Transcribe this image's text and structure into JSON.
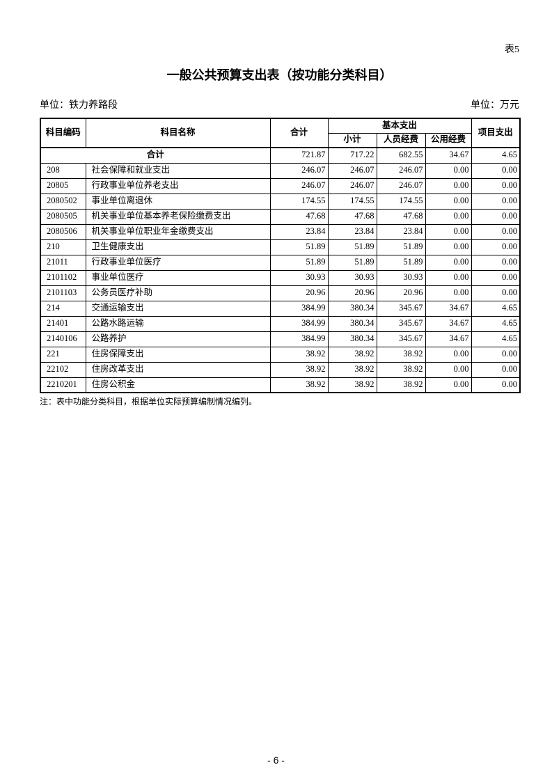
{
  "page": {
    "corner_label": "表5",
    "title": "一般公共预算支出表（按功能分类科目）",
    "unit_left": "单位：铁力养路段",
    "unit_right": "单位：万元",
    "note": "注：表中功能分类科目，根据单位实际预算编制情况编列。",
    "page_number": "- 6 -",
    "ink_color": "#000000",
    "paper_color": "#ffffff"
  },
  "table": {
    "headers": {
      "code": "科目编码",
      "name": "科目名称",
      "total": "合计",
      "basic_group": "基本支出",
      "subtotal": "小计",
      "personnel": "人员经费",
      "public": "公用经费",
      "project": "项目支出"
    },
    "total_row": {
      "label": "合计",
      "values": [
        "721.87",
        "717.22",
        "682.55",
        "34.67",
        "4.65"
      ]
    },
    "rows": [
      {
        "code": "208",
        "name": "社会保障和就业支出",
        "values": [
          "246.07",
          "246.07",
          "246.07",
          "0.00",
          "0.00"
        ]
      },
      {
        "code": "20805",
        "name": "行政事业单位养老支出",
        "values": [
          "246.07",
          "246.07",
          "246.07",
          "0.00",
          "0.00"
        ]
      },
      {
        "code": "2080502",
        "name": "事业单位离退休",
        "values": [
          "174.55",
          "174.55",
          "174.55",
          "0.00",
          "0.00"
        ]
      },
      {
        "code": "2080505",
        "name": "机关事业单位基本养老保险缴费支出",
        "values": [
          "47.68",
          "47.68",
          "47.68",
          "0.00",
          "0.00"
        ]
      },
      {
        "code": "2080506",
        "name": "机关事业单位职业年金缴费支出",
        "values": [
          "23.84",
          "23.84",
          "23.84",
          "0.00",
          "0.00"
        ]
      },
      {
        "code": "210",
        "name": "卫生健康支出",
        "values": [
          "51.89",
          "51.89",
          "51.89",
          "0.00",
          "0.00"
        ]
      },
      {
        "code": "21011",
        "name": "行政事业单位医疗",
        "values": [
          "51.89",
          "51.89",
          "51.89",
          "0.00",
          "0.00"
        ]
      },
      {
        "code": "2101102",
        "name": "事业单位医疗",
        "values": [
          "30.93",
          "30.93",
          "30.93",
          "0.00",
          "0.00"
        ]
      },
      {
        "code": "2101103",
        "name": "公务员医疗补助",
        "values": [
          "20.96",
          "20.96",
          "20.96",
          "0.00",
          "0.00"
        ]
      },
      {
        "code": "214",
        "name": "交通运输支出",
        "values": [
          "384.99",
          "380.34",
          "345.67",
          "34.67",
          "4.65"
        ]
      },
      {
        "code": "21401",
        "name": "公路水路运输",
        "values": [
          "384.99",
          "380.34",
          "345.67",
          "34.67",
          "4.65"
        ]
      },
      {
        "code": "2140106",
        "name": "公路养护",
        "values": [
          "384.99",
          "380.34",
          "345.67",
          "34.67",
          "4.65"
        ]
      },
      {
        "code": "221",
        "name": "住房保障支出",
        "values": [
          "38.92",
          "38.92",
          "38.92",
          "0.00",
          "0.00"
        ]
      },
      {
        "code": "22102",
        "name": "住房改革支出",
        "values": [
          "38.92",
          "38.92",
          "38.92",
          "0.00",
          "0.00"
        ]
      },
      {
        "code": "2210201",
        "name": "住房公积金",
        "values": [
          "38.92",
          "38.92",
          "38.92",
          "0.00",
          "0.00"
        ]
      }
    ]
  }
}
